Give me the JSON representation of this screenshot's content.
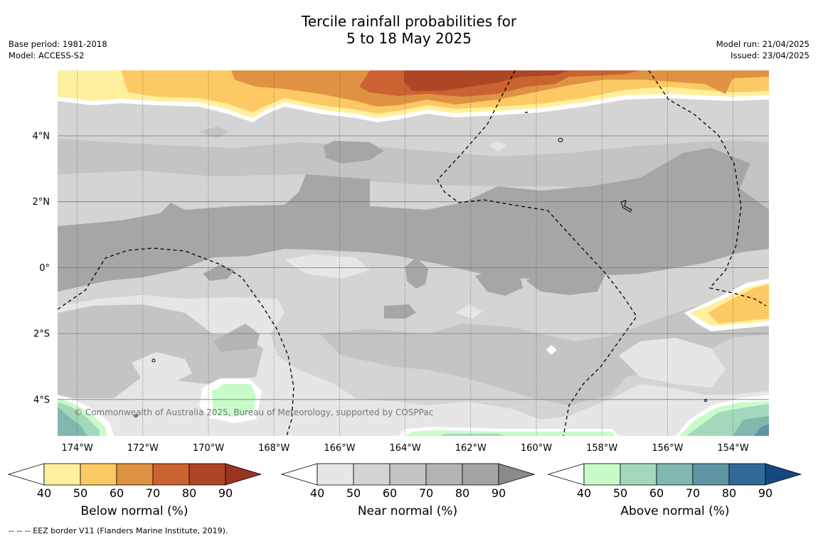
{
  "header": {
    "title_line1": "Tercile rainfall probabilities for",
    "title_line2": "5 to 18 May 2025",
    "base_period": "Base period: 1981-2018",
    "model": "Model: ACCESS-S2",
    "model_run": "Model run: 21/04/2025",
    "issued": "Issued: 23/04/2025"
  },
  "map": {
    "copyright": "© Commonwealth of Australia 2025, Bureau of Meteorology, supported by COSPPac",
    "lon_ticks": [
      "174°W",
      "172°W",
      "170°W",
      "168°W",
      "166°W",
      "164°W",
      "162°W",
      "160°W",
      "158°W",
      "156°W",
      "154°W"
    ],
    "lat_ticks": [
      "4°N",
      "2°N",
      "0°",
      "2°S",
      "4°S"
    ]
  },
  "colorbars": [
    {
      "label": "Below normal (%)",
      "ticks": [
        "40",
        "50",
        "60",
        "70",
        "80",
        "90"
      ],
      "colors": [
        "#fff09f",
        "#fdc964",
        "#e09243",
        "#ca6331",
        "#ae4625",
        "#9a3420"
      ]
    },
    {
      "label": "Near normal (%)",
      "ticks": [
        "40",
        "50",
        "60",
        "70",
        "80",
        "90"
      ],
      "colors": [
        "#e6e6e6",
        "#d4d4d4",
        "#c4c4c4",
        "#b4b4b4",
        "#a4a4a4",
        "#8a8a8a"
      ]
    },
    {
      "label": "Above normal (%)",
      "ticks": [
        "40",
        "50",
        "60",
        "70",
        "80",
        "90"
      ],
      "colors": [
        "#c8fbc8",
        "#a4d8bd",
        "#80b7ae",
        "#5e95a2",
        "#336999",
        "#16497e"
      ]
    }
  ],
  "footer": {
    "legend_text": "--  --  -- EEZ border V11 (Flanders Marine Institute, 2019)."
  }
}
